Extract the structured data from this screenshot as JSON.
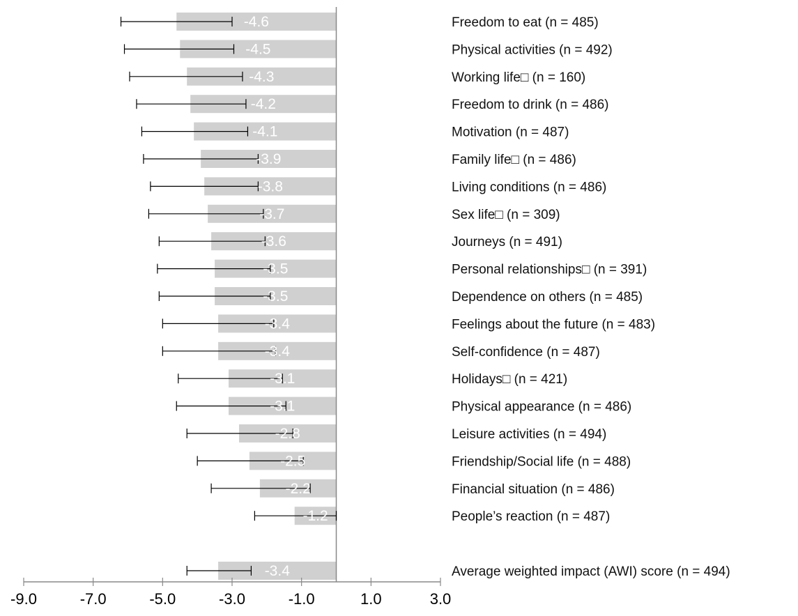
{
  "chart_data": {
    "type": "bar",
    "orientation": "horizontal",
    "categories": [
      "Freedom to eat (n = 485)",
      "Physical activities (n = 492)",
      "Working life□ (n = 160)",
      "Freedom to drink (n = 486)",
      "Motivation (n = 487)",
      "Family life□ (n = 486)",
      "Living conditions (n = 486)",
      "Sex life□ (n = 309)",
      "Journeys (n = 491)",
      "Personal relationships□ (n = 391)",
      "Dependence on others (n = 485)",
      "Feelings about the future (n = 483)",
      "Self-confidence (n = 487)",
      "Holidays□ (n = 421)",
      "Physical appearance (n = 486)",
      "Leisure activities (n = 494)",
      "Friendship/Social life (n = 488)",
      "Financial situation (n = 486)",
      "People’s reaction (n = 487)",
      "Average weighted impact (AWI) score (n = 494)"
    ],
    "values": [
      -4.6,
      -4.5,
      -4.3,
      -4.2,
      -4.1,
      -3.9,
      -3.8,
      -3.7,
      -3.6,
      -3.5,
      -3.5,
      -3.4,
      -3.4,
      -3.1,
      -3.1,
      -2.8,
      -2.5,
      -2.2,
      -1.2,
      -3.4
    ],
    "value_labels": [
      "-4.6",
      "-4.5",
      "-4.3",
      "-4.2",
      "-4.1",
      "-3.9",
      "-3.8",
      "-3.7",
      "-3.6",
      "-3.5",
      "-3.5",
      "-3.4",
      "-3.4",
      "-3.1",
      "-3.1",
      "-2.8",
      "-2.5",
      "-2.2",
      "-1.2",
      "-3.4"
    ],
    "error_low": [
      -6.2,
      -6.1,
      -5.95,
      -5.75,
      -5.6,
      -5.55,
      -5.35,
      -5.4,
      -5.1,
      -5.15,
      -5.1,
      -5.0,
      -5.0,
      -4.55,
      -4.6,
      -4.3,
      -4.0,
      -3.6,
      -2.35,
      -4.3
    ],
    "error_high": [
      -3.0,
      -2.95,
      -2.7,
      -2.6,
      -2.55,
      -2.25,
      -2.25,
      -2.1,
      -2.05,
      -1.9,
      -1.9,
      -1.8,
      -1.75,
      -1.55,
      -1.45,
      -1.25,
      -0.95,
      -0.75,
      0.0,
      -2.45
    ],
    "xlim": [
      -9.0,
      3.0
    ],
    "xticks": [
      -9.0,
      -7.0,
      -5.0,
      -3.0,
      -1.0,
      1.0,
      3.0
    ],
    "xtick_labels": [
      "-9.0",
      "-7.0",
      "-5.0",
      "-3.0",
      "-1.0",
      "1.0",
      "3.0"
    ],
    "bar_color": "#d0d0d0",
    "errorbar_color": "#000000",
    "axis_color": "#888888",
    "value_label_color": "#ffffff",
    "grid": false,
    "legend": "none",
    "title": "",
    "xlabel": "",
    "ylabel": ""
  }
}
